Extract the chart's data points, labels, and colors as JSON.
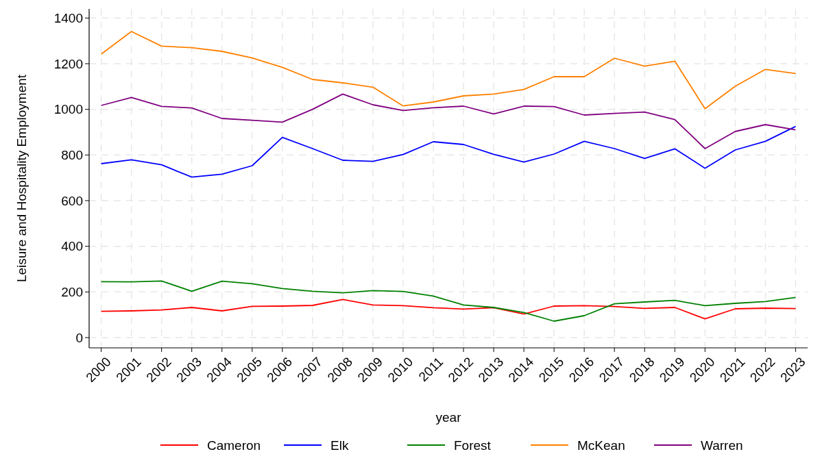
{
  "chart_data": {
    "type": "line",
    "xlabel": "year",
    "ylabel": "Leisure and Hospitality Employment",
    "x": [
      2000,
      2001,
      2002,
      2003,
      2004,
      2005,
      2006,
      2007,
      2008,
      2009,
      2010,
      2011,
      2012,
      2013,
      2014,
      2015,
      2016,
      2017,
      2018,
      2019,
      2020,
      2021,
      2022,
      2023
    ],
    "xlim": [
      1999.6,
      2023.4
    ],
    "xticks": [
      2000,
      2001,
      2002,
      2003,
      2004,
      2005,
      2006,
      2007,
      2008,
      2009,
      2010,
      2011,
      2012,
      2013,
      2014,
      2015,
      2016,
      2017,
      2018,
      2019,
      2020,
      2021,
      2022,
      2023
    ],
    "ylim": [
      -45,
      1440
    ],
    "yticks": [
      0,
      200,
      400,
      600,
      800,
      1000,
      1200,
      1400
    ],
    "grid": true,
    "legend": "bottom",
    "line_style": "solid",
    "marker": "none",
    "series": [
      {
        "name": "Cameron",
        "color": "#ff0000",
        "values": [
          115,
          117,
          121,
          132,
          117,
          137,
          138,
          141,
          167,
          143,
          140,
          131,
          125,
          131,
          103,
          138,
          140,
          136,
          128,
          132,
          82,
          126,
          129,
          127
        ]
      },
      {
        "name": "Elk",
        "color": "#0000ff",
        "values": [
          762,
          779,
          757,
          703,
          716,
          753,
          877,
          828,
          777,
          772,
          802,
          858,
          846,
          803,
          769,
          804,
          860,
          828,
          785,
          827,
          742,
          822,
          860,
          925
        ]
      },
      {
        "name": "Forest",
        "color": "#008000",
        "values": [
          245,
          244,
          248,
          203,
          247,
          236,
          215,
          203,
          196,
          206,
          202,
          182,
          143,
          132,
          110,
          72,
          96,
          148,
          156,
          163,
          140,
          150,
          158,
          176
        ]
      },
      {
        "name": "McKean",
        "color": "#ff8000",
        "values": [
          1242,
          1341,
          1277,
          1270,
          1254,
          1225,
          1184,
          1131,
          1116,
          1097,
          1015,
          1032,
          1059,
          1067,
          1087,
          1143,
          1143,
          1224,
          1189,
          1211,
          1003,
          1101,
          1175,
          1157
        ]
      },
      {
        "name": "Warren",
        "color": "#800080",
        "values": [
          1017,
          1052,
          1013,
          1006,
          960,
          952,
          944,
          1000,
          1067,
          1020,
          995,
          1007,
          1014,
          980,
          1014,
          1012,
          975,
          982,
          988,
          955,
          828,
          903,
          933,
          910
        ]
      }
    ]
  }
}
